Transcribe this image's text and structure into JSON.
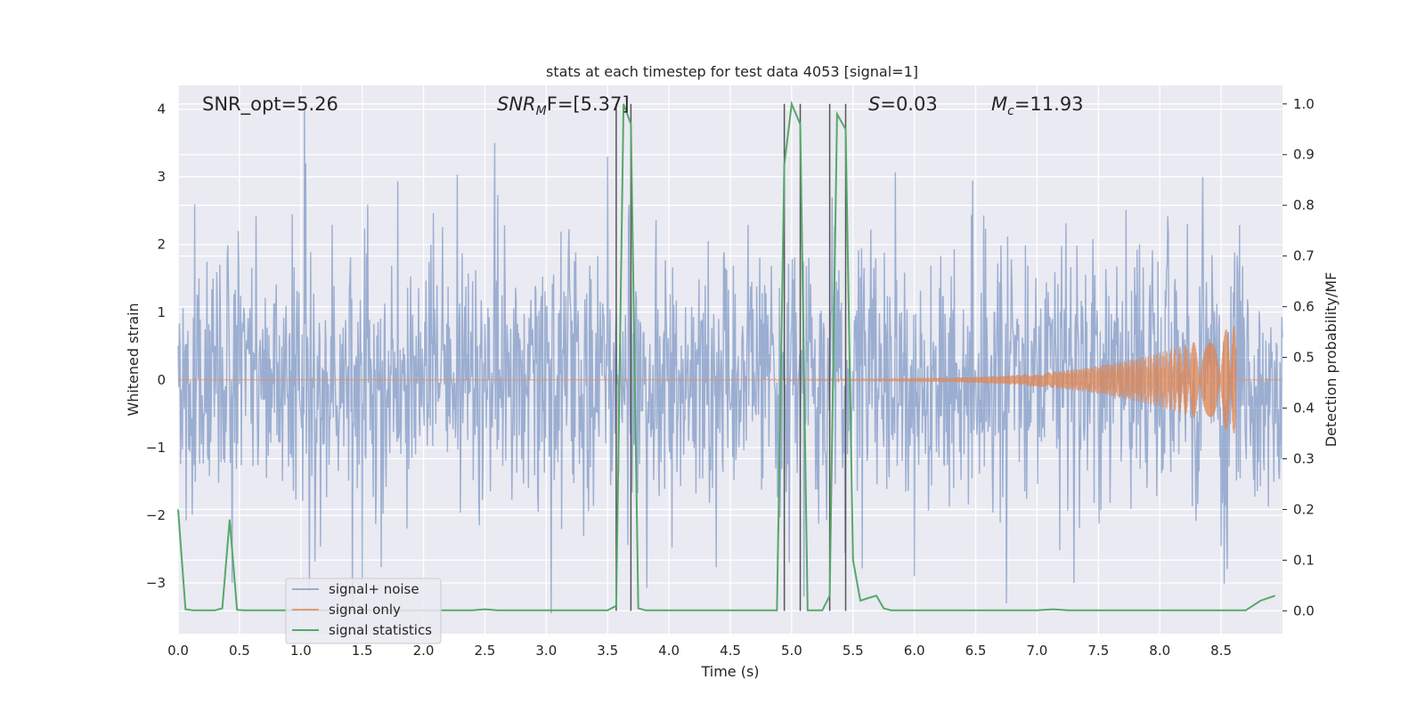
{
  "chart_data": {
    "type": "line",
    "title": "stats at each timestep for test data 4053 [signal=1]",
    "xlabel": "Time (s)",
    "ylabel": "Whitened strain",
    "y2label": "Detection probability/MF",
    "xlim": [
      0.0,
      9.0
    ],
    "ylim": [
      -3.75,
      4.35
    ],
    "y2lim": [
      -0.045,
      1.0365
    ],
    "grid": true,
    "legend_position": "lower-left",
    "x_ticks": [
      0.0,
      0.5,
      1.0,
      1.5,
      2.0,
      2.5,
      3.0,
      3.5,
      4.0,
      4.5,
      5.0,
      5.5,
      6.0,
      6.5,
      7.0,
      7.5,
      8.0,
      8.5
    ],
    "x_tick_labels": [
      "0.0",
      "0.5",
      "1.0",
      "1.5",
      "2.0",
      "2.5",
      "3.0",
      "3.5",
      "4.0",
      "4.5",
      "5.0",
      "5.5",
      "6.0",
      "6.5",
      "7.0",
      "7.5",
      "8.0",
      "8.5"
    ],
    "y_ticks": [
      4,
      3,
      2,
      1,
      0,
      -1,
      -2,
      -3
    ],
    "y_tick_labels": [
      "4",
      "3",
      "2",
      "1",
      "0",
      "−1",
      "−2",
      "−3"
    ],
    "y2_ticks": [
      1.0,
      0.9,
      0.8,
      0.7,
      0.6,
      0.5,
      0.4,
      0.3,
      0.2,
      0.1,
      0.0
    ],
    "y2_tick_labels": [
      "1.0",
      "0.9",
      "0.8",
      "0.7",
      "0.6",
      "0.5",
      "0.4",
      "0.3",
      "0.2",
      "0.1",
      "0.0"
    ],
    "annotations": [
      {
        "key": "snr_opt",
        "text": "SNR_opt=5.26",
        "x": 0.2,
        "y2": 1.0
      },
      {
        "key": "snr_mf",
        "label_main": "SNR",
        "label_sub": "M",
        "label_rest": "F=[5.37]",
        "x": 2.6,
        "y2": 1.0
      },
      {
        "key": "s",
        "label_main": "S",
        "label_rest": "=0.03",
        "x": 5.6,
        "y2": 1.0
      },
      {
        "key": "mc",
        "label_main": "M",
        "label_sub": "c",
        "label_rest": "=11.93",
        "x": 6.6,
        "y2": 1.0
      }
    ],
    "vertical_lines": [
      3.57,
      3.69,
      4.94,
      5.07,
      5.31,
      5.44
    ],
    "series": [
      {
        "name": "signal+ noise",
        "color": "#4c72b0",
        "alpha": 0.5,
        "axis": "left",
        "sample_rate": 200,
        "noise_sigma": 0.95,
        "spikes": [
          [
            1.03,
            4.0
          ],
          [
            1.04,
            3.2
          ],
          [
            1.07,
            -3.1
          ],
          [
            3.04,
            -3.45
          ],
          [
            3.5,
            3.3
          ],
          [
            4.98,
            -2.7
          ],
          [
            5.1,
            -3.2
          ],
          [
            6.75,
            -3.3
          ],
          [
            2.58,
            3.5
          ],
          [
            8.35,
            3.0
          ],
          [
            0.44,
            -3.0
          ],
          [
            1.5,
            -3.0
          ],
          [
            6.0,
            -2.9
          ],
          [
            7.3,
            -3.0
          ]
        ]
      },
      {
        "name": "signal only",
        "color": "#dd8452",
        "axis": "left",
        "chirp_start": 4.8,
        "chirp_end": 8.62,
        "chirp_peak_amp": 0.8,
        "chirp_freq_start": 30,
        "chirp_freq_end": 120
      },
      {
        "name": "signal statistics",
        "color": "#55a868",
        "axis": "right",
        "x": [
          0.0,
          0.06,
          0.12,
          0.18,
          0.24,
          0.3,
          0.36,
          0.42,
          0.48,
          0.54,
          0.6,
          0.9,
          1.2,
          1.5,
          1.8,
          2.1,
          2.4,
          2.5,
          2.6,
          3.0,
          3.3,
          3.5,
          3.57,
          3.63,
          3.69,
          3.75,
          3.81,
          4.0,
          4.5,
          4.88,
          4.94,
          5.0,
          5.07,
          5.13,
          5.2,
          5.25,
          5.31,
          5.37,
          5.44,
          5.5,
          5.56,
          5.62,
          5.69,
          5.75,
          5.81,
          6.0,
          6.5,
          7.0,
          7.13,
          7.25,
          7.5,
          8.0,
          8.5,
          8.7,
          8.82,
          8.94
        ],
        "values": [
          0.2,
          0.003,
          0.001,
          0.001,
          0.001,
          0.001,
          0.005,
          0.18,
          0.002,
          0.001,
          0.001,
          0.001,
          0.001,
          0.001,
          0.001,
          0.001,
          0.001,
          0.003,
          0.001,
          0.001,
          0.001,
          0.001,
          0.01,
          1.0,
          0.96,
          0.005,
          0.001,
          0.001,
          0.001,
          0.001,
          0.88,
          1.0,
          0.96,
          0.001,
          0.001,
          0.001,
          0.03,
          0.98,
          0.95,
          0.1,
          0.02,
          0.025,
          0.03,
          0.005,
          0.001,
          0.001,
          0.001,
          0.001,
          0.003,
          0.001,
          0.001,
          0.001,
          0.001,
          0.001,
          0.02,
          0.03
        ]
      }
    ]
  }
}
